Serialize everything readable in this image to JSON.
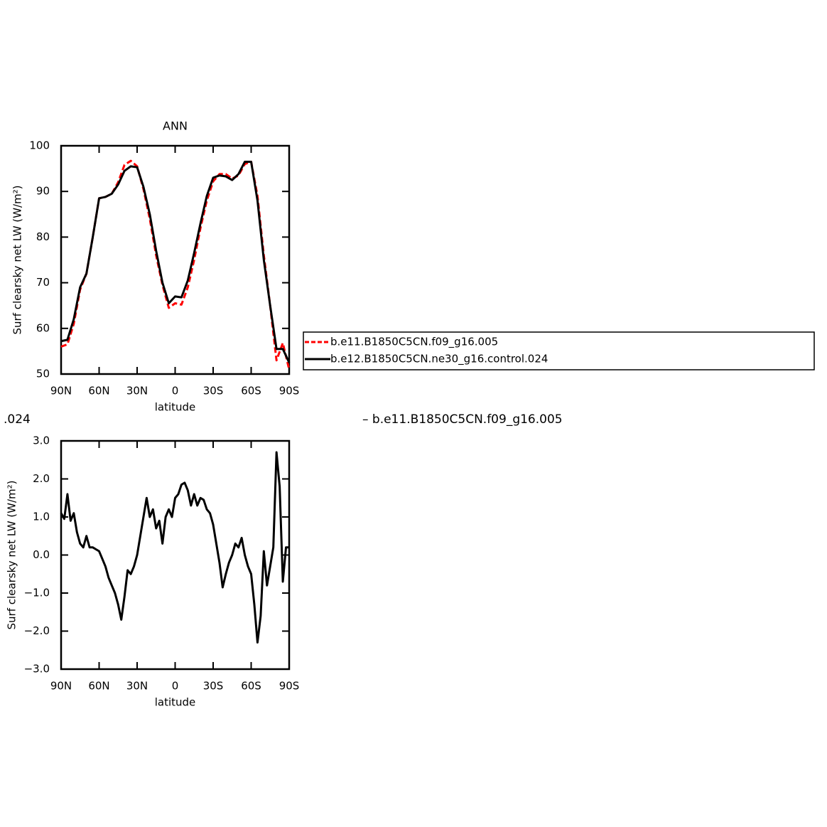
{
  "chart_data": [
    {
      "type": "line",
      "title": "ANN",
      "x_label": "latitude",
      "y_label": "Surf clearsky net LW (W/m²)",
      "x": [
        90,
        85,
        80,
        75,
        70,
        65,
        60,
        55,
        50,
        45,
        40,
        35,
        30,
        25,
        20,
        15,
        10,
        5,
        0,
        -5,
        -10,
        -15,
        -20,
        -25,
        -30,
        -35,
        -40,
        -45,
        -50,
        -55,
        -60,
        -65,
        -70,
        -75,
        -80,
        -85,
        -90
      ],
      "series": [
        {
          "name": "b.e11.B1850C5CN.f09_g16.005",
          "color": "#ff0000",
          "dash": true,
          "values": [
            56,
            56.5,
            61,
            68.5,
            72,
            80,
            88.5,
            88.8,
            89.5,
            92,
            95.8,
            96.7,
            95.5,
            90.5,
            84,
            76,
            69.5,
            64.5,
            65.5,
            65.2,
            69,
            75,
            82,
            88,
            92.2,
            93.8,
            93.8,
            92.8,
            93.5,
            96,
            96.5,
            89,
            76,
            65,
            53,
            56.8,
            51
          ]
        },
        {
          "name": "b.e12.B1850C5CN.ne30_g16.control.024",
          "color": "#000000",
          "dash": false,
          "values": [
            57.2,
            57.5,
            62,
            69,
            72,
            80,
            88.5,
            88.8,
            89.5,
            91.5,
            94.5,
            95.5,
            95.3,
            91,
            85,
            77,
            70,
            65.5,
            67,
            66.8,
            70.5,
            76.5,
            83,
            89,
            93,
            93.5,
            93.3,
            92.5,
            93.8,
            96.5,
            96.5,
            88,
            75,
            65,
            55.5,
            55.5,
            52.5
          ]
        }
      ],
      "xlim": [
        90,
        -90
      ],
      "xticks": [
        {
          "value": 90,
          "label": "90N"
        },
        {
          "value": 60,
          "label": "60N"
        },
        {
          "value": 30,
          "label": "30N"
        },
        0,
        {
          "value": -30,
          "label": "30S"
        },
        {
          "value": -60,
          "label": "60S"
        },
        {
          "value": -90,
          "label": "90S"
        }
      ],
      "ylim": [
        50,
        100
      ],
      "yticks": [
        50,
        60,
        70,
        80,
        90,
        100
      ],
      "legend": "right"
    },
    {
      "type": "line",
      "title_left": ".024",
      "title_right": "– b.e11.B1850C5CN.f09_g16.005",
      "x_label": "latitude",
      "y_label": "Surf clearsky net LW (W/m²)",
      "x": [
        90,
        87.5,
        85,
        82.5,
        80,
        77.5,
        75,
        72.5,
        70,
        67.5,
        65,
        62.5,
        60,
        57.5,
        55,
        52.5,
        50,
        47.5,
        45,
        42.5,
        40,
        37.5,
        35,
        32.5,
        30,
        27.5,
        25,
        22.5,
        20,
        17.5,
        15,
        12.5,
        10,
        7.5,
        5,
        2.5,
        0,
        -2.5,
        -5,
        -7.5,
        -10,
        -12.5,
        -15,
        -17.5,
        -20,
        -22.5,
        -25,
        -27.5,
        -30,
        -32.5,
        -35,
        -37.5,
        -40,
        -42.5,
        -45,
        -47.5,
        -50,
        -52.5,
        -55,
        -57.5,
        -60,
        -62.5,
        -65,
        -67.5,
        -70,
        -72.5,
        -75,
        -77.5,
        -80,
        -82.5,
        -85,
        -87.5,
        -90
      ],
      "color": "#000000",
      "values": [
        1.1,
        0.95,
        1.6,
        0.9,
        1.1,
        0.6,
        0.3,
        0.2,
        0.5,
        0.2,
        0.2,
        0.15,
        0.1,
        -0.1,
        -0.3,
        -0.6,
        -0.8,
        -1.0,
        -1.3,
        -1.7,
        -1.1,
        -0.4,
        -0.5,
        -0.3,
        0.0,
        0.5,
        1.0,
        1.5,
        1.0,
        1.2,
        0.7,
        0.9,
        0.3,
        1.0,
        1.2,
        1.0,
        1.5,
        1.6,
        1.85,
        1.9,
        1.7,
        1.3,
        1.6,
        1.3,
        1.5,
        1.45,
        1.2,
        1.1,
        0.8,
        0.3,
        -0.2,
        -0.85,
        -0.5,
        -0.2,
        0.0,
        0.3,
        0.2,
        0.45,
        0.0,
        -0.3,
        -0.5,
        -1.3,
        -2.3,
        -1.6,
        0.1,
        -0.8,
        -0.3,
        0.2,
        2.7,
        1.8,
        -0.7,
        0.2,
        0.2
      ],
      "xlim": [
        90,
        -90
      ],
      "xticks": [
        {
          "value": 90,
          "label": "90N"
        },
        {
          "value": 60,
          "label": "60N"
        },
        {
          "value": 30,
          "label": "30N"
        },
        0,
        {
          "value": -30,
          "label": "30S"
        },
        {
          "value": -60,
          "label": "60S"
        },
        {
          "value": -90,
          "label": "90S"
        }
      ],
      "ylim": [
        -3,
        3
      ],
      "yticks": [
        {
          "value": -3,
          "label": "−3.0"
        },
        {
          "value": -2,
          "label": "−2.0"
        },
        {
          "value": -1,
          "label": "−1.0"
        },
        {
          "value": 0,
          "label": "0.0"
        },
        {
          "value": 1,
          "label": "1.0"
        },
        {
          "value": 2,
          "label": "2.0"
        },
        {
          "value": 3,
          "label": "3.0"
        }
      ]
    }
  ]
}
